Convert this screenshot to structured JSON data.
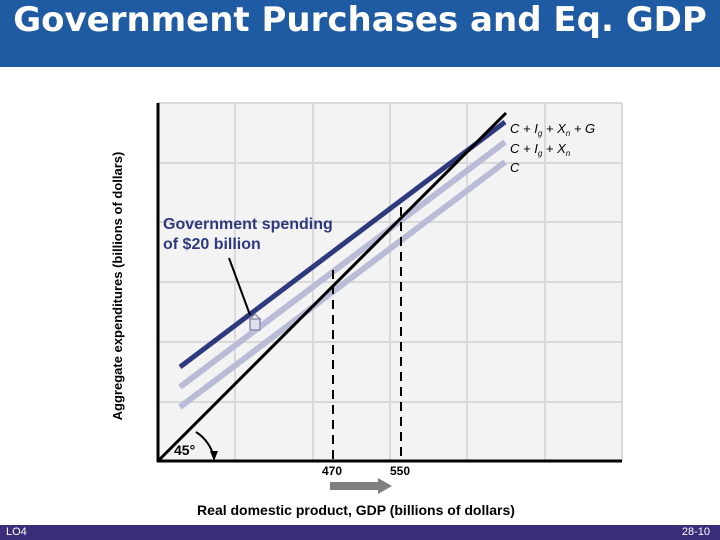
{
  "title": "Government Purchases and Eq. GDP",
  "footer": {
    "lo": "LO4",
    "page": "28-10"
  },
  "chart_data": {
    "type": "line",
    "xlabel": "Real domestic product, GDP (billions of dollars)",
    "ylabel": "Aggregate expenditures (billions of dollars)",
    "x_ticks": [
      "470",
      "550"
    ],
    "series": [
      {
        "name": "C + Ig + Xn + G",
        "color": "#2e3a7d"
      },
      {
        "name": "C + Ig + Xn",
        "color": "#b9bbd7"
      },
      {
        "name": "C",
        "color": "#b9bbd7"
      }
    ],
    "annotation": "Government spending of $20 billion",
    "angle_label": "45°",
    "colors": {
      "axis": "#000000",
      "grid": "#d9d9d9",
      "plot_bg": "#f3f3f3",
      "arrow": "#6b6b6b"
    }
  }
}
